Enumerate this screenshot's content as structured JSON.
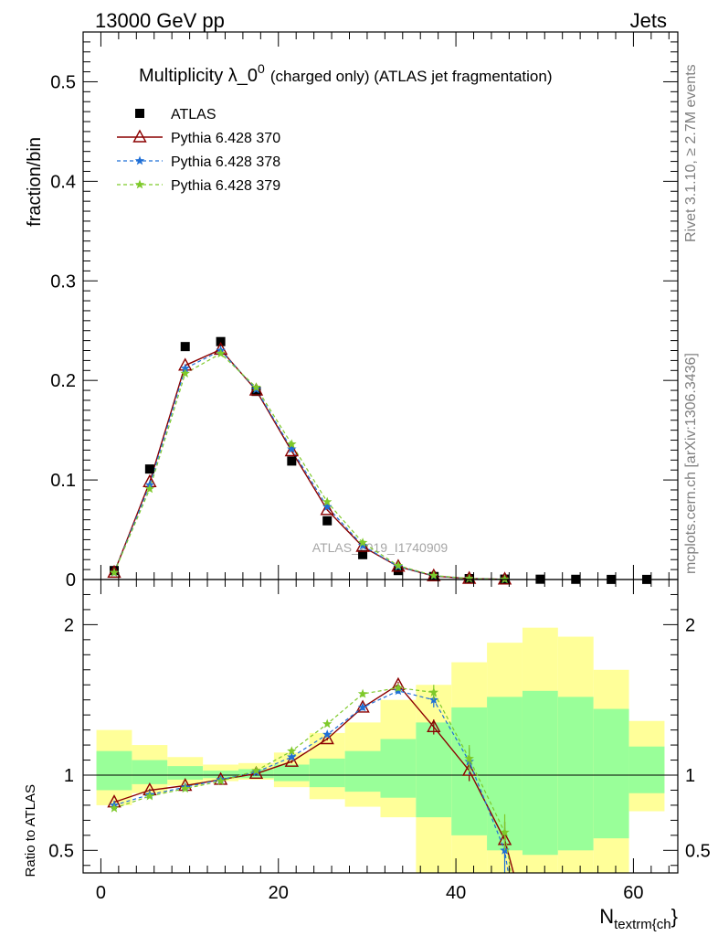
{
  "header": {
    "left": "13000 GeV pp",
    "right": "Jets"
  },
  "side_labels": {
    "rivet": "Rivet 3.1.10, ≥ 2.7M events",
    "mcplots": "mcplots.cern.ch [arXiv:1306.3436]"
  },
  "watermark": "ATLAS_2019_I1740909",
  "colors": {
    "atlas": "#000000",
    "p370": "#8b0000",
    "p378": "#1f6fd6",
    "p379": "#7ec92a",
    "band_outer": "#ffff99",
    "band_inner": "#99ff99"
  },
  "chart_data": [
    {
      "type": "scatter",
      "title_main": "Multiplicity λ_0",
      "title_sup": "0",
      "title_rest": "(charged only) (ATLAS jet fragmentation)",
      "ylabel": "fraction/bin",
      "xlim": [
        -2,
        65
      ],
      "ylim": [
        0,
        0.55
      ],
      "yticks": [
        0,
        0.1,
        0.2,
        0.3,
        0.4,
        0.5
      ],
      "ytick_labels": [
        "0",
        "0.1",
        "0.2",
        "0.3",
        "0.4",
        "0.5"
      ],
      "legend_position": "top-left",
      "series": [
        {
          "name": "ATLAS",
          "key": "atlas",
          "marker": "square",
          "x": [
            1.5,
            5.5,
            9.5,
            13.5,
            17.5,
            21.5,
            25.5,
            29.5,
            33.5,
            37.5,
            41.5,
            45.5,
            49.5,
            53.5,
            57.5,
            61.5
          ],
          "y": [
            0.009,
            0.111,
            0.234,
            0.239,
            0.189,
            0.119,
            0.059,
            0.025,
            0.009,
            0.003,
            0.0009,
            0.0004,
            0.0003,
            0.0002,
            0.0001,
            0.0001
          ]
        },
        {
          "name": "Pythia 6.428 370",
          "key": "p370",
          "marker": "triangle",
          "x": [
            1.5,
            5.5,
            9.5,
            13.5,
            17.5,
            21.5,
            25.5,
            29.5,
            33.5,
            37.5,
            41.5,
            45.5
          ],
          "y": [
            0.007,
            0.098,
            0.215,
            0.231,
            0.19,
            0.129,
            0.07,
            0.033,
            0.013,
            0.0035,
            0.0009,
            0.0002
          ]
        },
        {
          "name": "Pythia 6.428 378",
          "key": "p378",
          "marker": "star",
          "x": [
            1.5,
            5.5,
            9.5,
            13.5,
            17.5,
            21.5,
            25.5,
            29.5,
            33.5,
            37.5,
            41.5,
            45.5
          ],
          "y": [
            0.007,
            0.095,
            0.212,
            0.23,
            0.191,
            0.131,
            0.073,
            0.034,
            0.013,
            0.0038,
            0.001,
            0.0002
          ]
        },
        {
          "name": "Pythia 6.428 379",
          "key": "p379",
          "marker": "star",
          "x": [
            1.5,
            5.5,
            9.5,
            13.5,
            17.5,
            21.5,
            25.5,
            29.5,
            33.5,
            37.5,
            41.5,
            45.5
          ],
          "y": [
            0.007,
            0.091,
            0.207,
            0.227,
            0.193,
            0.136,
            0.078,
            0.037,
            0.014,
            0.004,
            0.001,
            0.0003
          ]
        }
      ]
    },
    {
      "type": "line",
      "ylabel": "Ratio to ATLAS",
      "xlabel_main": "N",
      "xlabel_sub": "textrm{ch",
      "xlabel_tail": "}",
      "xlim": [
        -2,
        65
      ],
      "ylim": [
        0.35,
        2.3
      ],
      "xticks": [
        0,
        20,
        40,
        60
      ],
      "xtick_labels": [
        "0",
        "20",
        "40",
        "60"
      ],
      "yticks": [
        0.5,
        1,
        2
      ],
      "ytick_labels": [
        "0.5",
        "1",
        "2"
      ],
      "reference": 1,
      "bands": {
        "edges": [
          -0.5,
          3.5,
          7.5,
          11.5,
          15.5,
          19.5,
          23.5,
          27.5,
          31.5,
          35.5,
          39.5,
          43.5,
          47.5,
          51.5,
          55.5,
          59.5,
          63.5
        ],
        "outer_lo": [
          0.8,
          0.88,
          0.93,
          0.96,
          0.97,
          0.92,
          0.84,
          0.79,
          0.72,
          0.35,
          0.35,
          0.35,
          0.35,
          0.35,
          0.35,
          0.76
        ],
        "outer_hi": [
          1.3,
          1.2,
          1.12,
          1.07,
          1.08,
          1.15,
          1.28,
          1.35,
          1.5,
          1.6,
          1.75,
          1.88,
          1.98,
          1.92,
          1.7,
          1.36
        ],
        "inner_lo": [
          0.9,
          0.94,
          0.97,
          0.98,
          0.98,
          0.96,
          0.92,
          0.89,
          0.85,
          0.72,
          0.6,
          0.5,
          0.47,
          0.5,
          0.58,
          0.88
        ],
        "inner_hi": [
          1.16,
          1.1,
          1.06,
          1.03,
          1.04,
          1.07,
          1.11,
          1.16,
          1.24,
          1.35,
          1.45,
          1.52,
          1.56,
          1.52,
          1.44,
          1.19
        ]
      },
      "series": [
        {
          "name": "Pythia 6.428 370",
          "key": "p370",
          "marker": "triangle",
          "x": [
            1.5,
            5.5,
            9.5,
            13.5,
            17.5,
            21.5,
            25.5,
            29.5,
            33.5,
            37.5,
            41.5,
            45.5,
            46.5
          ],
          "y": [
            0.82,
            0.9,
            0.93,
            0.97,
            1.01,
            1.09,
            1.24,
            1.45,
            1.6,
            1.32,
            1.03,
            0.57,
            0.3
          ],
          "err": [
            0.01,
            0.01,
            0.01,
            0.01,
            0.01,
            0.01,
            0.01,
            0.02,
            0.02,
            0.05,
            0.07,
            0.12,
            0
          ]
        },
        {
          "name": "Pythia 6.428 378",
          "key": "p378",
          "marker": "star",
          "x": [
            1.5,
            5.5,
            9.5,
            13.5,
            17.5,
            21.5,
            25.5,
            29.5,
            33.5,
            37.5,
            41.5,
            45.5,
            45.9
          ],
          "y": [
            0.8,
            0.87,
            0.92,
            0.97,
            1.02,
            1.12,
            1.27,
            1.45,
            1.56,
            1.5,
            1.09,
            0.5,
            0.3
          ],
          "err": [
            0.01,
            0.01,
            0.01,
            0.01,
            0.01,
            0.01,
            0.01,
            0.02,
            0.02,
            0.05,
            0.09,
            0.15,
            0
          ]
        },
        {
          "name": "Pythia 6.428 379",
          "key": "p379",
          "marker": "star",
          "x": [
            1.5,
            5.5,
            9.5,
            13.5,
            17.5,
            21.5,
            25.5,
            29.5,
            33.5,
            37.5,
            41.5,
            45.5,
            46.2
          ],
          "y": [
            0.78,
            0.86,
            0.91,
            0.96,
            1.03,
            1.16,
            1.34,
            1.54,
            1.58,
            1.55,
            1.11,
            0.62,
            0.3
          ],
          "err": [
            0.01,
            0.01,
            0.01,
            0.01,
            0.01,
            0.01,
            0.01,
            0.02,
            0.02,
            0.05,
            0.09,
            0.12,
            0
          ]
        }
      ]
    }
  ]
}
